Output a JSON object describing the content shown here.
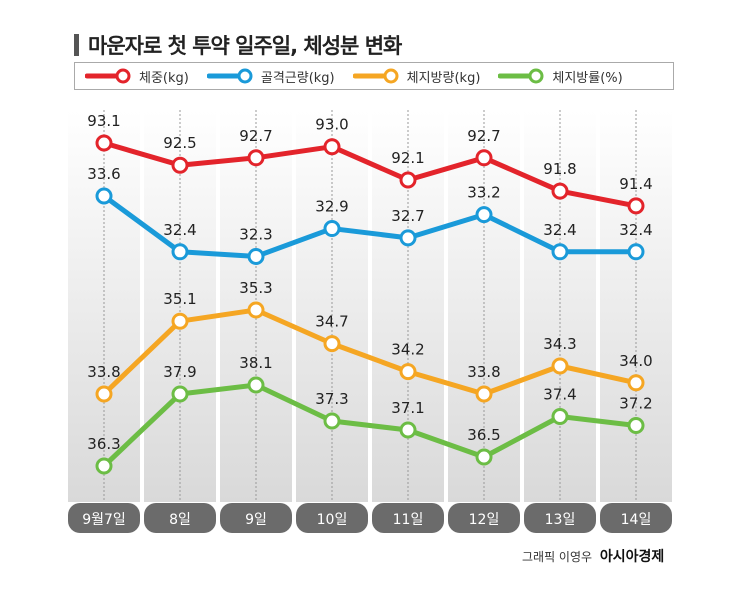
{
  "title": "마운자로 첫 투약 일주일, 체성분 변화",
  "credit": {
    "graphic": "그래픽 이영우",
    "brand": "아시아경제"
  },
  "chart_data": {
    "type": "line",
    "title": "마운자로 첫 투약 일주일, 체성분 변화",
    "categories": [
      "9월7일",
      "8일",
      "9일",
      "10일",
      "11일",
      "12일",
      "13일",
      "14일"
    ],
    "legend_position": "top",
    "grid": false,
    "series": [
      {
        "name": "체중(kg)",
        "color": "#e3242b",
        "values": [
          93.1,
          92.5,
          92.7,
          93.0,
          92.1,
          92.7,
          91.8,
          91.4
        ]
      },
      {
        "name": "골격근량(kg)",
        "color": "#1a9ad9",
        "values": [
          33.6,
          32.4,
          32.3,
          32.9,
          32.7,
          33.2,
          32.4,
          32.4
        ]
      },
      {
        "name": "체지방량(kg)",
        "color": "#f5a623",
        "values": [
          33.8,
          35.1,
          35.3,
          34.7,
          34.2,
          33.8,
          34.3,
          34.0
        ]
      },
      {
        "name": "체지방률(%)",
        "color": "#6cbd45",
        "values": [
          36.3,
          37.9,
          38.1,
          37.3,
          37.1,
          36.5,
          37.4,
          37.2
        ]
      }
    ]
  }
}
